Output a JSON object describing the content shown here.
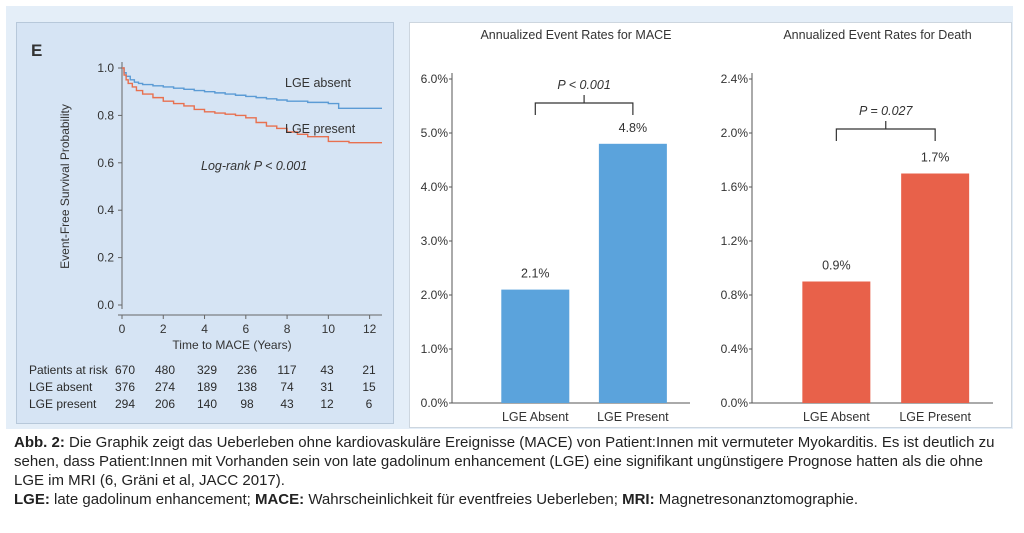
{
  "caption": {
    "fig_label": "Abb. 2:",
    "fig_text": " Die Graphik zeigt das Ueberleben ohne kardiovaskuläre Ereignisse (MACE) von Patient:Innen mit vermuteter Myokarditis. Es ist deutlich zu sehen, dass Patient:Innen mit Vorhanden sein von late gadolinum enhancement (LGE) eine signifikant ungünstigere Prognose hatten als die ohne LGE im MRI (6, Gräni et al, JACC 2017).",
    "abbr_lge_term": "LGE:",
    "abbr_lge_text": " late gadolinum enhancement; ",
    "abbr_mace_term": "MACE:",
    "abbr_mace_text": " Wahrscheinlichkeit für eventfreies Ueberleben; ",
    "abbr_mri_term": "MRI:",
    "abbr_mri_text": " Magnetresonanztomographie."
  },
  "risk_table": {
    "rows": [
      {
        "label": "Patients at risk",
        "values": [
          "670",
          "480",
          "329",
          "236",
          "117",
          "43",
          "21"
        ]
      },
      {
        "label": "LGE absent",
        "values": [
          "376",
          "274",
          "189",
          "138",
          "74",
          "31",
          "15"
        ]
      },
      {
        "label": "LGE present",
        "values": [
          "294",
          "206",
          "140",
          "98",
          "43",
          "12",
          "6"
        ]
      }
    ]
  },
  "chart_data": [
    {
      "type": "line",
      "panel_letter": "E",
      "title": "",
      "xlabel": "Time to MACE (Years)",
      "ylabel": "Event-Free Survival Probability",
      "xlim": [
        0,
        12.6
      ],
      "ylim": [
        0,
        1.0
      ],
      "x_ticks": [
        0,
        2,
        4,
        6,
        8,
        10,
        12
      ],
      "y_ticks": [
        "0.0",
        "0.2",
        "0.4",
        "0.6",
        "0.8",
        "1.0"
      ],
      "annotation": "Log-rank P < 0.001",
      "colors": {
        "absent": "#5b9bd5",
        "present": "#e8704f"
      },
      "series": [
        {
          "name": "LGE absent",
          "color": "#5b9bd5",
          "points": [
            [
              0,
              1.0
            ],
            [
              0.1,
              0.98
            ],
            [
              0.2,
              0.965
            ],
            [
              0.4,
              0.95
            ],
            [
              0.6,
              0.94
            ],
            [
              0.8,
              0.935
            ],
            [
              1.0,
              0.93
            ],
            [
              1.5,
              0.925
            ],
            [
              2.0,
              0.92
            ],
            [
              2.5,
              0.915
            ],
            [
              3.0,
              0.91
            ],
            [
              3.5,
              0.905
            ],
            [
              4.0,
              0.9
            ],
            [
              4.5,
              0.895
            ],
            [
              5.0,
              0.89
            ],
            [
              5.5,
              0.885
            ],
            [
              6.0,
              0.88
            ],
            [
              6.5,
              0.875
            ],
            [
              7.0,
              0.87
            ],
            [
              7.5,
              0.865
            ],
            [
              8.0,
              0.86
            ],
            [
              8.5,
              0.86
            ],
            [
              9.0,
              0.855
            ],
            [
              9.5,
              0.855
            ],
            [
              10.0,
              0.85
            ],
            [
              10.5,
              0.83
            ],
            [
              11.0,
              0.83
            ],
            [
              12.6,
              0.83
            ]
          ]
        },
        {
          "name": "LGE present",
          "color": "#e8704f",
          "points": [
            [
              0,
              1.0
            ],
            [
              0.1,
              0.97
            ],
            [
              0.2,
              0.95
            ],
            [
              0.3,
              0.935
            ],
            [
              0.5,
              0.92
            ],
            [
              0.7,
              0.905
            ],
            [
              1.0,
              0.89
            ],
            [
              1.5,
              0.875
            ],
            [
              2.0,
              0.86
            ],
            [
              2.5,
              0.85
            ],
            [
              3.0,
              0.84
            ],
            [
              3.5,
              0.825
            ],
            [
              4.0,
              0.815
            ],
            [
              4.5,
              0.81
            ],
            [
              5.0,
              0.805
            ],
            [
              5.5,
              0.8
            ],
            [
              6.0,
              0.79
            ],
            [
              6.5,
              0.77
            ],
            [
              7.0,
              0.755
            ],
            [
              7.5,
              0.745
            ],
            [
              8.0,
              0.73
            ],
            [
              8.5,
              0.72
            ],
            [
              9.0,
              0.71
            ],
            [
              9.5,
              0.71
            ],
            [
              10.0,
              0.69
            ],
            [
              11.0,
              0.685
            ],
            [
              12.6,
              0.685
            ]
          ]
        }
      ]
    },
    {
      "type": "bar",
      "title": "Annualized Event Rates for MACE",
      "categories": [
        "LGE Absent",
        "LGE Present"
      ],
      "values": [
        2.1,
        4.8
      ],
      "value_labels": [
        "2.1%",
        "4.8%"
      ],
      "color": "#5ba3dc",
      "ylim": [
        0,
        6.0
      ],
      "y_ticks": [
        "0.0%",
        "1.0%",
        "2.0%",
        "3.0%",
        "4.0%",
        "5.0%",
        "6.0%"
      ],
      "y_tick_values": [
        0,
        1,
        2,
        3,
        4,
        5,
        6
      ],
      "significance": "P < 0.001"
    },
    {
      "type": "bar",
      "title": "Annualized Event Rates for Death",
      "categories": [
        "LGE Absent",
        "LGE Present"
      ],
      "values": [
        0.9,
        1.7
      ],
      "value_labels": [
        "0.9%",
        "1.7%"
      ],
      "color": "#e8614a",
      "ylim": [
        0,
        2.4
      ],
      "y_ticks": [
        "0.0%",
        "0.4%",
        "0.8%",
        "1.2%",
        "1.6%",
        "2.0%",
        "2.4%"
      ],
      "y_tick_values": [
        0,
        0.4,
        0.8,
        1.2,
        1.6,
        2.0,
        2.4
      ],
      "significance": "P = 0.027"
    }
  ]
}
